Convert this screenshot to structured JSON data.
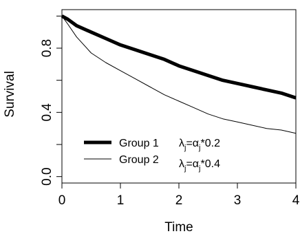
{
  "chart_data": {
    "type": "line",
    "title": "",
    "xlabel": "Time",
    "ylabel": "Survival",
    "xlim": [
      0,
      4
    ],
    "ylim": [
      0,
      1
    ],
    "x_ticks": [
      "0",
      "1",
      "2",
      "3",
      "4"
    ],
    "y_ticks": [
      "0.0",
      "0.4",
      "0.8"
    ],
    "grid": false,
    "legend_position": "bottom-left",
    "series": [
      {
        "name": "Group 1",
        "annotation": {
          "lambda": "λ",
          "sub_j": "j",
          "eq": "=",
          "alpha": "α",
          "rest": "*0.2"
        },
        "style": "thick",
        "x": [
          0,
          0.1,
          0.25,
          0.5,
          0.75,
          1.0,
          1.25,
          1.5,
          1.75,
          2.0,
          2.25,
          2.5,
          2.75,
          3.0,
          3.25,
          3.5,
          3.75,
          4.0
        ],
        "y": [
          1.0,
          0.98,
          0.94,
          0.9,
          0.86,
          0.82,
          0.79,
          0.76,
          0.73,
          0.69,
          0.66,
          0.63,
          0.6,
          0.58,
          0.56,
          0.54,
          0.52,
          0.49
        ]
      },
      {
        "name": "Group 2",
        "annotation": {
          "lambda": "λ",
          "sub_j": "j",
          "eq": "=",
          "alpha": "α",
          "rest": "*0.4"
        },
        "style": "thin",
        "x": [
          0,
          0.1,
          0.25,
          0.5,
          0.75,
          1.0,
          1.25,
          1.5,
          1.75,
          2.0,
          2.25,
          2.5,
          2.75,
          3.0,
          3.25,
          3.5,
          3.75,
          4.0
        ],
        "y": [
          1.0,
          0.95,
          0.87,
          0.77,
          0.71,
          0.66,
          0.61,
          0.56,
          0.51,
          0.47,
          0.43,
          0.39,
          0.36,
          0.34,
          0.32,
          0.3,
          0.29,
          0.27
        ]
      }
    ]
  }
}
